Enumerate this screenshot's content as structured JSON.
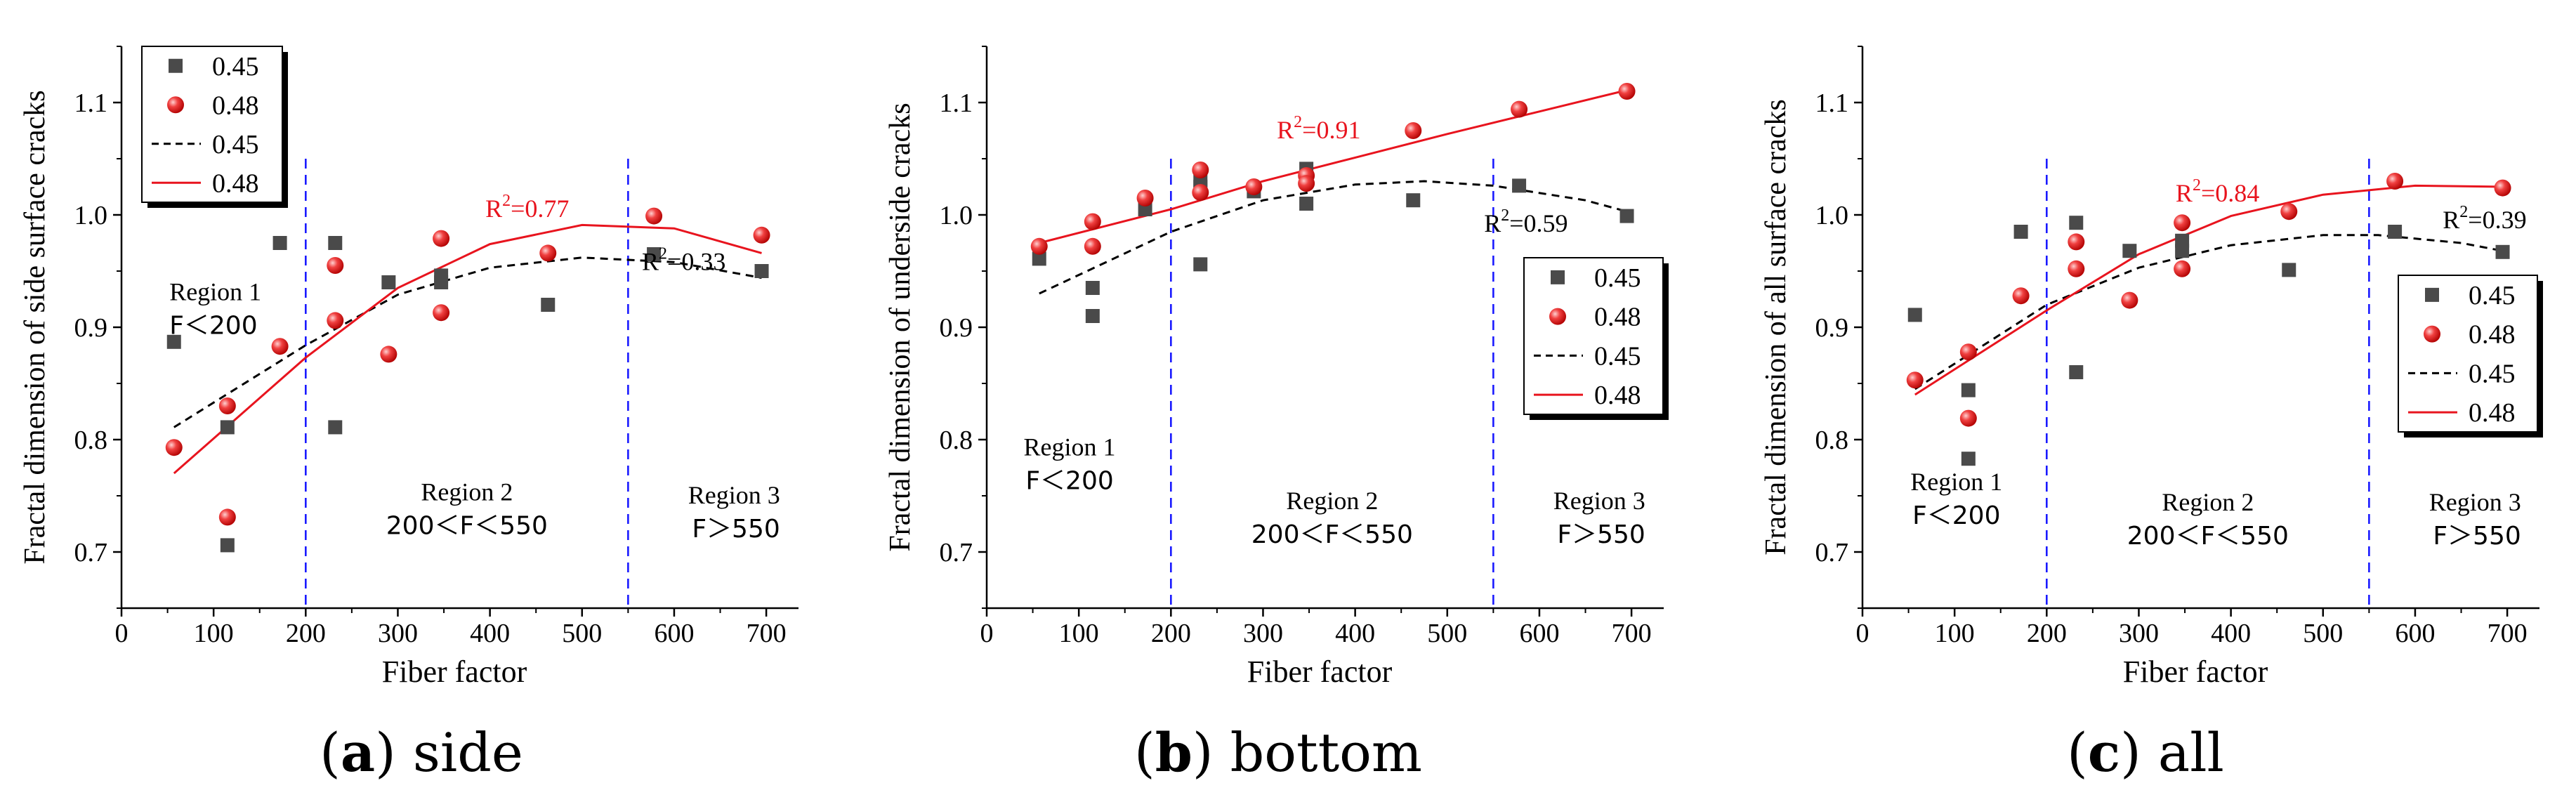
{
  "chart_data": [
    {
      "type": "scatter",
      "caption_letter": "a",
      "caption_text": "side",
      "xlabel": "Fiber factor",
      "ylabel": "Fractal dimension of side surface cracks",
      "xlim": [
        0,
        700
      ],
      "ylim": [
        0.65,
        1.15
      ],
      "xticks": [
        "0",
        "100",
        "200",
        "300",
        "400",
        "500",
        "600",
        "700"
      ],
      "yticks": [
        "0.7",
        "0.8",
        "0.9",
        "1.0",
        "1.1"
      ],
      "legend_labels": [
        "0.45",
        "0.48",
        "0.45",
        "0.48"
      ],
      "legend_position": "top-left",
      "boundaries": [
        200,
        550
      ],
      "regions": [
        {
          "title": "Region 1",
          "condition": "F＜200",
          "x": 52,
          "y": 0.924,
          "anchor": "start"
        },
        {
          "title": "Region 2",
          "condition": "200＜F＜550",
          "x": 375,
          "y": 0.746,
          "anchor": "middle"
        },
        {
          "title": "Region 3",
          "condition": "F＞550",
          "x": 715,
          "y": 0.743,
          "anchor": "end"
        }
      ],
      "r2": [
        {
          "series": "0.48",
          "base": "R",
          "exp": "2",
          "value": "=0.77",
          "x": 395,
          "y": 0.998
        },
        {
          "series": "0.45",
          "base": "R",
          "exp": "2",
          "value": "=0.33",
          "x": 565,
          "y": 0.951
        }
      ],
      "scatter_045": [
        [
          57,
          0.887
        ],
        [
          115,
          0.706
        ],
        [
          115,
          0.811
        ],
        [
          172,
          0.975
        ],
        [
          232,
          0.975
        ],
        [
          232,
          0.811
        ],
        [
          290,
          0.94
        ],
        [
          347,
          0.946
        ],
        [
          347,
          0.94
        ],
        [
          463,
          0.92
        ],
        [
          578,
          0.965
        ],
        [
          695,
          0.95
        ]
      ],
      "scatter_048": [
        [
          57,
          0.793
        ],
        [
          115,
          0.731
        ],
        [
          115,
          0.83
        ],
        [
          172,
          0.883
        ],
        [
          232,
          0.955
        ],
        [
          232,
          0.906
        ],
        [
          290,
          0.876
        ],
        [
          347,
          0.979
        ],
        [
          347,
          0.913
        ],
        [
          463,
          0.966
        ],
        [
          578,
          0.999
        ],
        [
          695,
          0.982
        ]
      ],
      "fit_045": [
        [
          57,
          0.811
        ],
        [
          200,
          0.884
        ],
        [
          300,
          0.929
        ],
        [
          400,
          0.953
        ],
        [
          500,
          0.962
        ],
        [
          600,
          0.958
        ],
        [
          695,
          0.944
        ]
      ],
      "fit_048": [
        [
          57,
          0.77
        ],
        [
          200,
          0.873
        ],
        [
          300,
          0.935
        ],
        [
          400,
          0.974
        ],
        [
          500,
          0.991
        ],
        [
          600,
          0.988
        ],
        [
          695,
          0.966
        ]
      ]
    },
    {
      "type": "scatter",
      "caption_letter": "b",
      "caption_text": "bottom",
      "xlabel": "Fiber factor",
      "ylabel": "Fractal dimension of underside cracks",
      "xlim": [
        0,
        700
      ],
      "ylim": [
        0.65,
        1.15
      ],
      "xticks": [
        "0",
        "100",
        "200",
        "300",
        "400",
        "500",
        "600",
        "700"
      ],
      "yticks": [
        "0.7",
        "0.8",
        "0.9",
        "1.0",
        "1.1"
      ],
      "legend_labels": [
        "0.45",
        "0.48",
        "0.45",
        "0.48"
      ],
      "legend_position": "right",
      "boundaries": [
        200,
        550
      ],
      "regions": [
        {
          "title": "Region 1",
          "condition": "F＜200",
          "x": 90,
          "y": 0.786,
          "anchor": "middle"
        },
        {
          "title": "Region 2",
          "condition": "200＜F＜550",
          "x": 375,
          "y": 0.738,
          "anchor": "middle"
        },
        {
          "title": "Region 3",
          "condition": "F＞550",
          "x": 715,
          "y": 0.738,
          "anchor": "end"
        }
      ],
      "r2": [
        {
          "series": "0.48",
          "base": "R",
          "exp": "2",
          "value": "=0.91",
          "x": 315,
          "y": 1.068
        },
        {
          "series": "0.45",
          "base": "R",
          "exp": "2",
          "value": "=0.59",
          "x": 540,
          "y": 0.985
        }
      ],
      "scatter_045": [
        [
          57,
          0.961
        ],
        [
          115,
          0.935
        ],
        [
          115,
          0.91
        ],
        [
          172,
          1.005
        ],
        [
          232,
          1.031
        ],
        [
          232,
          1.025
        ],
        [
          232,
          0.956
        ],
        [
          290,
          1.021
        ],
        [
          347,
          1.041
        ],
        [
          347,
          1.01
        ],
        [
          463,
          1.013
        ],
        [
          578,
          1.026
        ],
        [
          695,
          0.999
        ]
      ],
      "scatter_048": [
        [
          57,
          0.972
        ],
        [
          115,
          0.994
        ],
        [
          115,
          0.972
        ],
        [
          172,
          1.015
        ],
        [
          232,
          1.04
        ],
        [
          232,
          1.02
        ],
        [
          290,
          1.025
        ],
        [
          347,
          1.035
        ],
        [
          347,
          1.028
        ],
        [
          463,
          1.075
        ],
        [
          578,
          1.094
        ],
        [
          695,
          1.11
        ]
      ],
      "fit_045": [
        [
          57,
          0.93
        ],
        [
          200,
          0.985
        ],
        [
          300,
          1.013
        ],
        [
          400,
          1.027
        ],
        [
          475,
          1.03
        ],
        [
          550,
          1.026
        ],
        [
          650,
          1.013
        ],
        [
          695,
          1.003
        ]
      ],
      "fit_048": [
        [
          57,
          0.975
        ],
        [
          200,
          1.005
        ],
        [
          300,
          1.03
        ],
        [
          400,
          1.051
        ],
        [
          500,
          1.072
        ],
        [
          600,
          1.092
        ],
        [
          695,
          1.111
        ]
      ]
    },
    {
      "type": "scatter",
      "caption_letter": "c",
      "caption_text": "all",
      "xlabel": "Fiber factor",
      "ylabel": "Fractal dimension of all surface cracks",
      "xlim": [
        0,
        700
      ],
      "ylim": [
        0.65,
        1.15
      ],
      "xticks": [
        "0",
        "100",
        "200",
        "300",
        "400",
        "500",
        "600",
        "700"
      ],
      "yticks": [
        "0.7",
        "0.8",
        "0.9",
        "1.0",
        "1.1"
      ],
      "legend_labels": [
        "0.45",
        "0.48",
        "0.45",
        "0.48"
      ],
      "legend_position": "right",
      "boundaries": [
        200,
        550
      ],
      "regions": [
        {
          "title": "Region 1",
          "condition": "F＜200",
          "x": 102,
          "y": 0.755,
          "anchor": "middle"
        },
        {
          "title": "Region 2",
          "condition": "200＜F＜550",
          "x": 375,
          "y": 0.737,
          "anchor": "middle"
        },
        {
          "title": "Region 3",
          "condition": "F＞550",
          "x": 715,
          "y": 0.737,
          "anchor": "end"
        }
      ],
      "r2": [
        {
          "series": "0.48",
          "base": "R",
          "exp": "2",
          "value": "=0.84",
          "x": 340,
          "y": 1.012
        },
        {
          "series": "0.45",
          "base": "R",
          "exp": "2",
          "value": "=0.39",
          "x": 630,
          "y": 0.988
        }
      ],
      "scatter_045": [
        [
          57,
          0.911
        ],
        [
          115,
          0.844
        ],
        [
          115,
          0.783
        ],
        [
          172,
          0.985
        ],
        [
          232,
          0.993
        ],
        [
          232,
          0.86
        ],
        [
          290,
          0.968
        ],
        [
          347,
          0.977
        ],
        [
          347,
          0.968
        ],
        [
          463,
          0.951
        ],
        [
          578,
          0.985
        ],
        [
          695,
          0.967
        ]
      ],
      "scatter_048": [
        [
          57,
          0.853
        ],
        [
          115,
          0.878
        ],
        [
          115,
          0.819
        ],
        [
          172,
          0.928
        ],
        [
          232,
          0.976
        ],
        [
          232,
          0.952
        ],
        [
          290,
          0.924
        ],
        [
          347,
          0.993
        ],
        [
          347,
          0.952
        ],
        [
          463,
          1.003
        ],
        [
          578,
          1.03
        ],
        [
          695,
          1.024
        ]
      ],
      "fit_045": [
        [
          57,
          0.845
        ],
        [
          200,
          0.92
        ],
        [
          300,
          0.953
        ],
        [
          400,
          0.973
        ],
        [
          500,
          0.982
        ],
        [
          560,
          0.982
        ],
        [
          650,
          0.975
        ],
        [
          695,
          0.968
        ]
      ],
      "fit_048": [
        [
          57,
          0.84
        ],
        [
          200,
          0.915
        ],
        [
          300,
          0.965
        ],
        [
          400,
          0.999
        ],
        [
          500,
          1.018
        ],
        [
          600,
          1.026
        ],
        [
          695,
          1.025
        ]
      ]
    }
  ]
}
